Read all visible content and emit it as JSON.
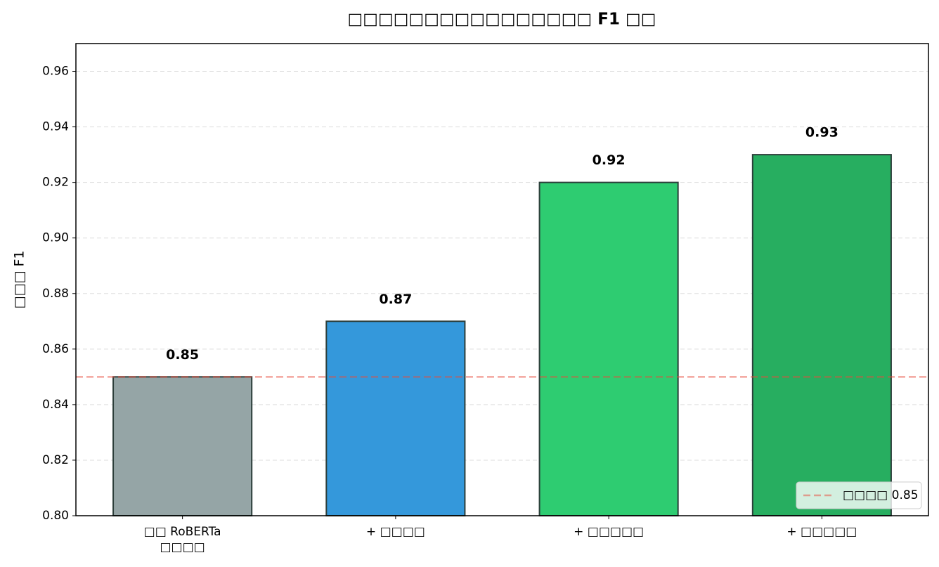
{
  "chart_data": {
    "type": "bar",
    "title": "□□□□□□□□□□□□□□□□ F1 □□",
    "ylabel": "□□□ F1",
    "categories": [
      "□□ RoBERTa\n□□□□",
      "+ □□□□",
      "+ □□□□□",
      "+ □□□□□"
    ],
    "values": [
      0.85,
      0.87,
      0.92,
      0.93
    ],
    "colors": [
      "#95a5a6",
      "#3498db",
      "#2ecc71",
      "#27ae60"
    ],
    "ylim": [
      0.8,
      0.97
    ],
    "yticks": [
      {
        "value": 0.8,
        "label": "0.80"
      },
      0.82,
      0.84,
      0.86,
      0.88,
      {
        "value": 0.9,
        "label": "0.90"
      },
      0.92,
      0.94,
      0.96
    ],
    "grid": true,
    "reference_line": {
      "value": 0.85,
      "label": "□□□□ 0.85",
      "color": "#e74c3c"
    },
    "legend": "lower right"
  }
}
